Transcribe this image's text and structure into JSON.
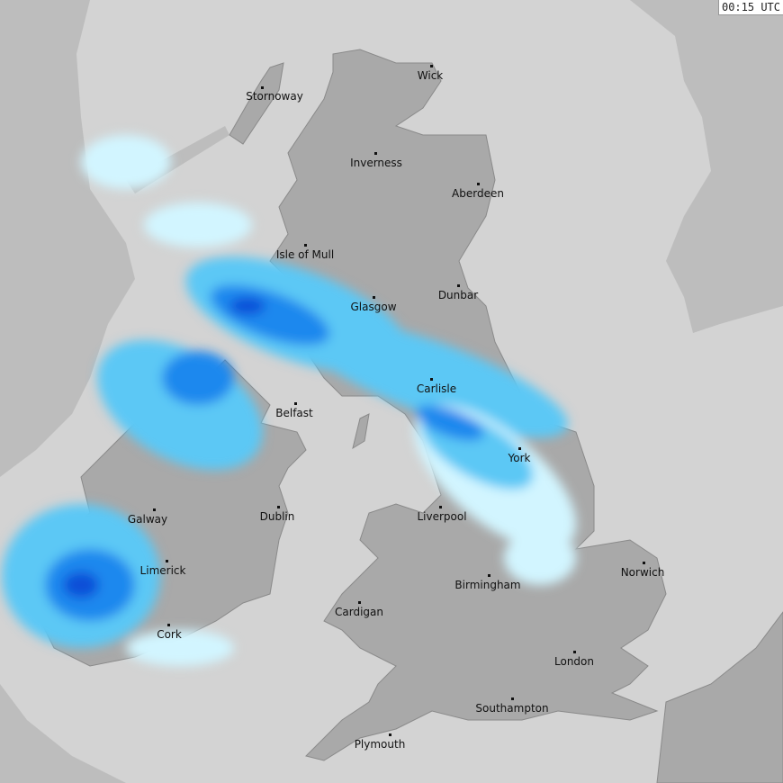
{
  "timestamp": "00:15 UTC",
  "colors": {
    "outside_coverage": "#bdbdbd",
    "coverage": "#d3d3d3",
    "land": "#a9a9a9",
    "rain_light": "#d2f5ff",
    "rain_moderate": "#5cc8f5",
    "rain_heavy": "#1e88ee",
    "rain_very_heavy": "#0b4fd8"
  },
  "cities": [
    "Stornoway",
    "Wick",
    "Inverness",
    "Aberdeen",
    "Isle of Mull",
    "Dunbar",
    "Glasgow",
    "Carlisle",
    "Belfast",
    "York",
    "Galway",
    "Dublin",
    "Liverpool",
    "Limerick",
    "Norwich",
    "Birmingham",
    "Cardigan",
    "Cork",
    "London",
    "Southampton",
    "Plymouth"
  ]
}
